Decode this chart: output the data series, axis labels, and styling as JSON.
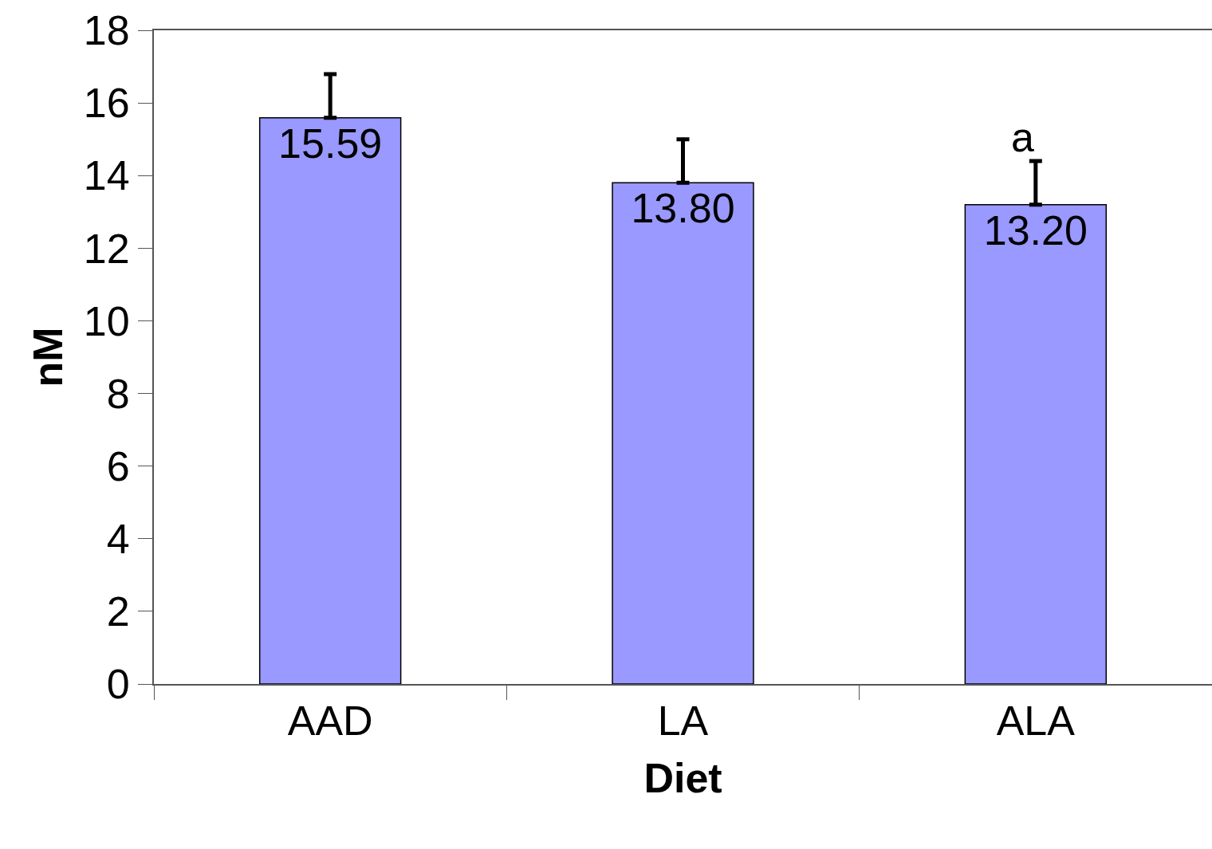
{
  "chart_data": {
    "type": "bar",
    "xlabel": "Diet",
    "ylabel": "nM",
    "categories": [
      "AAD",
      "LA",
      "ALA"
    ],
    "values": [
      15.59,
      13.8,
      13.2
    ],
    "value_labels": [
      "15.59",
      "13.80",
      "13.20"
    ],
    "errors": [
      [
        15.59,
        16.79
      ],
      [
        13.8,
        15.0
      ],
      [
        13.2,
        14.4
      ]
    ],
    "color": "#9999ff",
    "ylim": [
      0,
      18
    ],
    "yticks": [
      0,
      2,
      4,
      6,
      8,
      10,
      12,
      14,
      16,
      18
    ],
    "annotations": [
      "a"
    ]
  }
}
